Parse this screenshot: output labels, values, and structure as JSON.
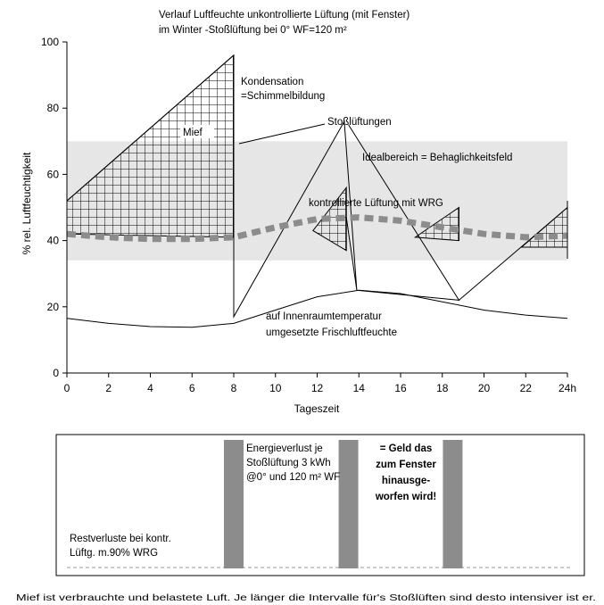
{
  "chart_data": [
    {
      "type": "line",
      "title": "Verlauf Luftfeuchte unkontrollierte Lüftung (mit Fenster)",
      "subtitle": "im Winter -Stoßlüftung bei 0° WF=120 m²",
      "xlabel": "Tageszeit",
      "ylabel": "% rel. Luftfeuchtigkeit",
      "xlim": [
        0,
        24
      ],
      "ylim": [
        0,
        100
      ],
      "x_ticks": [
        0,
        2,
        4,
        6,
        8,
        10,
        12,
        14,
        16,
        18,
        20,
        22,
        24
      ],
      "x_tick_labels": [
        "0",
        "2",
        "4",
        "6",
        "8",
        "10",
        "12",
        "14",
        "16",
        "18",
        "20",
        "22",
        "24h"
      ],
      "y_ticks": [
        0,
        20,
        40,
        60,
        80,
        100
      ],
      "y_tick_labels": [
        "0",
        "20",
        "40",
        "60",
        "80",
        "100"
      ],
      "grid": false,
      "colors": {
        "band": "#e6e6e6",
        "dashed": "#8c8c8c",
        "line": "#000000",
        "hatch": "#000000"
      },
      "ideal_band": {
        "y_low": 34,
        "y_high": 70
      },
      "series": [
        {
          "key": "stossluftung",
          "style": "sawtooth",
          "points": [
            [
              0,
              52
            ],
            [
              8,
              96
            ],
            [
              8,
              17
            ],
            [
              13.3,
              76
            ],
            [
              13.9,
              25
            ],
            [
              13.4,
              47
            ],
            [
              13.9,
              25
            ],
            [
              18.8,
              22
            ],
            [
              13.5,
              75
            ],
            [
              18.8,
              22
            ],
            [
              24,
              50
            ]
          ]
        },
        {
          "key": "kontrolliert",
          "style": "thick-dashed",
          "points": [
            [
              0,
              42
            ],
            [
              2,
              41
            ],
            [
              4,
              40.5
            ],
            [
              6,
              40.5
            ],
            [
              8,
              41
            ],
            [
              10,
              44
            ],
            [
              12,
              46.5
            ],
            [
              14,
              47
            ],
            [
              16,
              46
            ],
            [
              18,
              44
            ],
            [
              20,
              42
            ],
            [
              22,
              41
            ],
            [
              24,
              41.5
            ]
          ]
        },
        {
          "key": "frischluftfeuchte",
          "style": "thin-solid",
          "points": [
            [
              0,
              16.5
            ],
            [
              2,
              15
            ],
            [
              4,
              14
            ],
            [
              6,
              13.8
            ],
            [
              8,
              15
            ],
            [
              10,
              19
            ],
            [
              12,
              23
            ],
            [
              14,
              25
            ],
            [
              16,
              24
            ],
            [
              18,
              21.5
            ],
            [
              20,
              19
            ],
            [
              22,
              17.5
            ],
            [
              24,
              16.5
            ]
          ]
        }
      ],
      "hatched_areas": [
        {
          "key": "mief_area",
          "polygon": [
            [
              0,
              52
            ],
            [
              8,
              96
            ],
            [
              8,
              41
            ],
            [
              0,
              42
            ]
          ]
        },
        {
          "key": "hatch_12",
          "polygon": [
            [
              11.8,
              43
            ],
            [
              13.4,
              56
            ],
            [
              13.4,
              37
            ]
          ]
        },
        {
          "key": "hatch_17",
          "polygon": [
            [
              16.7,
              41
            ],
            [
              18.8,
              50
            ],
            [
              18.8,
              40
            ]
          ]
        },
        {
          "key": "hatch_22",
          "polygon": [
            [
              21.8,
              38
            ],
            [
              24,
              50
            ],
            [
              24,
              38
            ]
          ]
        }
      ],
      "annotations": {
        "kondensation_line1": "Kondensation",
        "kondensation_line2": "=Schimmelbildung",
        "mief": "Mief",
        "stosslueftungen": "Stoßlüftungen",
        "idealbereich": "Idealbereich = Behaglichkeitsfeld",
        "kontrolliert": "kontrollierte Lüftung mit WRG",
        "innenraum_line1": "auf Innenraumtemperatur",
        "innenraum_line2": "umgesetzte Frischluftfeuchte"
      }
    },
    {
      "type": "bar",
      "categories": [
        "8",
        "13.5",
        "18.5"
      ],
      "values": [
        1,
        1,
        1
      ],
      "xlim": [
        0,
        24
      ],
      "colors": {
        "bar": "#8c8c8c"
      },
      "annotations": {
        "energie_line1": "Energieverlust je",
        "energie_line2": "Stoßlüftung 3 kWh",
        "energie_line3": "@0° und 120 m² WF",
        "geld_line1": "= Geld das",
        "geld_line2": "zum Fenster",
        "geld_line3": "hinausge-",
        "geld_line4": "worfen wird!",
        "rest_line1": "Restverluste bei kontr.",
        "rest_line2": "Lüftg. m.90%  WRG"
      }
    }
  ],
  "footer": "Mief ist verbrauchte und belastete Luft. Je länger die Intervalle für's Stoßlüften sind desto intensiver ist er."
}
